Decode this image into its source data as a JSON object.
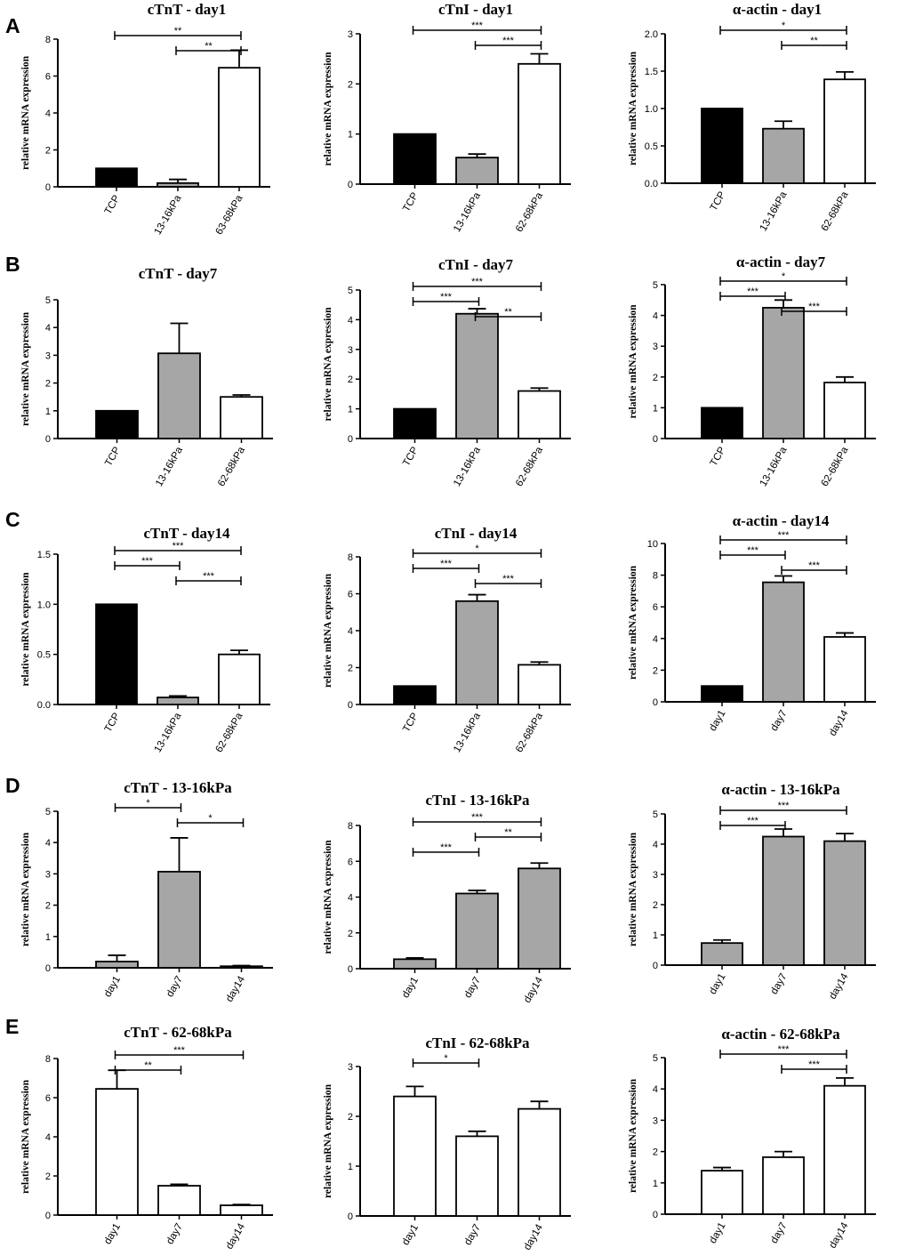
{
  "panel_labels": [
    "A",
    "B",
    "C",
    "D",
    "E"
  ],
  "colors": {
    "black": "#000000",
    "gray": "#a6a6a6",
    "white": "#ffffff",
    "axis": "#000000"
  },
  "chart_data": [
    {
      "type": "bar",
      "title": "cTnT - day1",
      "ylabel": "relative mRNA expression",
      "categories": [
        "TCP",
        "13-16kPa",
        "63-68kPa"
      ],
      "values": [
        1,
        0.2,
        6.45
      ],
      "errors": [
        0,
        0.2,
        0.95
      ],
      "fills": [
        "black",
        "gray",
        "white"
      ],
      "ylim": [
        0,
        8
      ],
      "yticks": [
        "0",
        "2",
        "4",
        "6",
        "8"
      ],
      "sig": [
        {
          "from": 0,
          "to": 2,
          "label": "**"
        },
        {
          "from": 1,
          "to": 2,
          "label": "**"
        }
      ]
    },
    {
      "type": "bar",
      "title": "cTnI - day1",
      "ylabel": "relative mRNA expression",
      "categories": [
        "TCP",
        "13-16kPa",
        "62-68kPa"
      ],
      "values": [
        1,
        0.53,
        2.4
      ],
      "errors": [
        0,
        0.07,
        0.2
      ],
      "fills": [
        "black",
        "gray",
        "white"
      ],
      "ylim": [
        0,
        3
      ],
      "yticks": [
        "0",
        "1",
        "2",
        "3"
      ],
      "sig": [
        {
          "from": 0,
          "to": 2,
          "label": "***"
        },
        {
          "from": 1,
          "to": 2,
          "label": "***"
        }
      ]
    },
    {
      "type": "bar",
      "title": "α-actin - day1",
      "ylabel": "relative mRNA expression",
      "categories": [
        "TCP",
        "13-16kPa",
        "62-68kPa"
      ],
      "values": [
        1,
        0.73,
        1.39
      ],
      "errors": [
        0,
        0.1,
        0.1
      ],
      "fills": [
        "black",
        "gray",
        "white"
      ],
      "ylim": [
        0,
        2
      ],
      "yticks": [
        "0.0",
        "0.5",
        "1.0",
        "1.5",
        "2.0"
      ],
      "sig": [
        {
          "from": 0,
          "to": 2,
          "label": "*"
        },
        {
          "from": 1,
          "to": 2,
          "label": "**"
        }
      ]
    },
    {
      "type": "bar",
      "title": "cTnT - day7",
      "ylabel": "relative mRNA expression",
      "categories": [
        "TCP",
        "13-16kPa",
        "62-68kPa"
      ],
      "values": [
        1,
        3.07,
        1.5
      ],
      "errors": [
        0,
        1.08,
        0.07
      ],
      "fills": [
        "black",
        "gray",
        "white"
      ],
      "ylim": [
        0,
        5
      ],
      "yticks": [
        "0",
        "1",
        "2",
        "3",
        "4",
        "5"
      ],
      "sig": []
    },
    {
      "type": "bar",
      "title": "cTnI - day7",
      "ylabel": "relative mRNA expression",
      "categories": [
        "TCP",
        "13-16kPa",
        "62-68kPa"
      ],
      "values": [
        1,
        4.2,
        1.6
      ],
      "errors": [
        0,
        0.17,
        0.1
      ],
      "fills": [
        "black",
        "gray",
        "white"
      ],
      "ylim": [
        0,
        5
      ],
      "yticks": [
        "0",
        "1",
        "2",
        "3",
        "4",
        "5"
      ],
      "sig": [
        {
          "from": 0,
          "to": 2,
          "label": "***"
        },
        {
          "from": 0,
          "to": 1,
          "label": "***"
        },
        {
          "from": 1,
          "to": 2,
          "label": "**"
        }
      ]
    },
    {
      "type": "bar",
      "title": "α-actin - day7",
      "ylabel": "relative mRNA expression",
      "categories": [
        "TCP",
        "13-16kPa",
        "62-68kPa"
      ],
      "values": [
        1,
        4.25,
        1.82
      ],
      "errors": [
        0,
        0.25,
        0.18
      ],
      "fills": [
        "black",
        "gray",
        "white"
      ],
      "ylim": [
        0,
        5
      ],
      "yticks": [
        "0",
        "1",
        "2",
        "3",
        "4",
        "5"
      ],
      "sig": [
        {
          "from": 0,
          "to": 2,
          "label": "*"
        },
        {
          "from": 0,
          "to": 1,
          "label": "***"
        },
        {
          "from": 1,
          "to": 2,
          "label": "***"
        }
      ]
    },
    {
      "type": "bar",
      "title": "cTnT - day14",
      "ylabel": "relative mRNA expression",
      "categories": [
        "TCP",
        "13-16kPa",
        "62-68kPa"
      ],
      "values": [
        1,
        0.07,
        0.5
      ],
      "errors": [
        0,
        0.015,
        0.04
      ],
      "fills": [
        "black",
        "gray",
        "white"
      ],
      "ylim": [
        0,
        1.5
      ],
      "yticks": [
        "0.0",
        "0.5",
        "1.0",
        "1.5"
      ],
      "sig": [
        {
          "from": 0,
          "to": 2,
          "label": "***"
        },
        {
          "from": 0,
          "to": 1,
          "label": "***"
        },
        {
          "from": 1,
          "to": 2,
          "label": "***"
        }
      ]
    },
    {
      "type": "bar",
      "title": "cTnI - day14",
      "ylabel": "relative mRNA expression",
      "categories": [
        "TCP",
        "13-16kPa",
        "62-68kPa"
      ],
      "values": [
        1,
        5.6,
        2.15
      ],
      "errors": [
        0,
        0.35,
        0.15
      ],
      "fills": [
        "black",
        "gray",
        "white"
      ],
      "ylim": [
        0,
        8
      ],
      "yticks": [
        "0",
        "2",
        "4",
        "6",
        "8"
      ],
      "sig": [
        {
          "from": 0,
          "to": 2,
          "label": "*"
        },
        {
          "from": 0,
          "to": 1,
          "label": "***"
        },
        {
          "from": 1,
          "to": 2,
          "label": "***"
        }
      ]
    },
    {
      "type": "bar",
      "title": "α-actin - day14",
      "ylabel": "relative mRNA expression",
      "categories": [
        "day1",
        "day7",
        "day14"
      ],
      "values": [
        1,
        7.55,
        4.1
      ],
      "errors": [
        0,
        0.4,
        0.25
      ],
      "fills": [
        "black",
        "gray",
        "white"
      ],
      "ylim": [
        0,
        10
      ],
      "yticks": [
        "0",
        "2",
        "4",
        "6",
        "8",
        "10"
      ],
      "sig": [
        {
          "from": 0,
          "to": 2,
          "label": "***"
        },
        {
          "from": 0,
          "to": 1,
          "label": "***"
        },
        {
          "from": 1,
          "to": 2,
          "label": "***"
        }
      ]
    },
    {
      "type": "bar",
      "title": "cTnT - 13-16kPa",
      "ylabel": "relative mRNA expression",
      "categories": [
        "day1",
        "day7",
        "day14"
      ],
      "values": [
        0.2,
        3.07,
        0.05
      ],
      "errors": [
        0.2,
        1.08,
        0.02
      ],
      "fills": [
        "gray",
        "gray",
        "gray"
      ],
      "ylim": [
        0,
        5
      ],
      "yticks": [
        "0",
        "1",
        "2",
        "3",
        "4",
        "5"
      ],
      "sig": [
        {
          "from": 0,
          "to": 1,
          "label": "*"
        },
        {
          "from": 1,
          "to": 2,
          "label": "*"
        }
      ]
    },
    {
      "type": "bar",
      "title": "cTnI - 13-16kPa",
      "ylabel": "relative mRNA expression",
      "categories": [
        "day1",
        "day7",
        "day14"
      ],
      "values": [
        0.53,
        4.2,
        5.6
      ],
      "errors": [
        0.07,
        0.17,
        0.3
      ],
      "fills": [
        "gray",
        "gray",
        "gray"
      ],
      "ylim": [
        0,
        8
      ],
      "yticks": [
        "0",
        "2",
        "4",
        "6",
        "8"
      ],
      "sig": [
        {
          "from": 0,
          "to": 2,
          "label": "***"
        },
        {
          "from": 1,
          "to": 2,
          "label": "**"
        },
        {
          "from": 0,
          "to": 1,
          "label": "***"
        }
      ]
    },
    {
      "type": "bar",
      "title": "α-actin - 13-16kPa",
      "ylabel": "relative mRNA expression",
      "categories": [
        "day1",
        "day7",
        "day14"
      ],
      "values": [
        0.73,
        4.25,
        4.1
      ],
      "errors": [
        0.1,
        0.25,
        0.25
      ],
      "fills": [
        "gray",
        "gray",
        "gray"
      ],
      "ylim": [
        0,
        5
      ],
      "yticks": [
        "0",
        "1",
        "2",
        "3",
        "4",
        "5"
      ],
      "sig": [
        {
          "from": 0,
          "to": 2,
          "label": "***"
        },
        {
          "from": 0,
          "to": 1,
          "label": "***"
        }
      ]
    },
    {
      "type": "bar",
      "title": "cTnT - 62-68kPa",
      "ylabel": "relative mRNA expression",
      "categories": [
        "day1",
        "day7",
        "day14"
      ],
      "values": [
        6.45,
        1.5,
        0.5
      ],
      "errors": [
        0.95,
        0.07,
        0.04
      ],
      "fills": [
        "white",
        "white",
        "white"
      ],
      "ylim": [
        0,
        8
      ],
      "yticks": [
        "0",
        "2",
        "4",
        "6",
        "8"
      ],
      "sig": [
        {
          "from": 0,
          "to": 2,
          "label": "***"
        },
        {
          "from": 0,
          "to": 1,
          "label": "**"
        }
      ]
    },
    {
      "type": "bar",
      "title": "cTnI - 62-68kPa",
      "ylabel": "relative mRNA expression",
      "categories": [
        "day1",
        "day7",
        "day14"
      ],
      "values": [
        2.4,
        1.6,
        2.15
      ],
      "errors": [
        0.2,
        0.1,
        0.15
      ],
      "fills": [
        "white",
        "white",
        "white"
      ],
      "ylim": [
        0,
        3
      ],
      "yticks": [
        "0",
        "1",
        "2",
        "3"
      ],
      "sig": [
        {
          "from": 0,
          "to": 1,
          "label": "*"
        }
      ]
    },
    {
      "type": "bar",
      "title": "α-actin - 62-68kPa",
      "ylabel": "relative mRNA expression",
      "categories": [
        "day1",
        "day7",
        "day14"
      ],
      "values": [
        1.39,
        1.82,
        4.1
      ],
      "errors": [
        0.1,
        0.18,
        0.25
      ],
      "fills": [
        "white",
        "white",
        "white"
      ],
      "ylim": [
        0,
        5
      ],
      "yticks": [
        "0",
        "1",
        "2",
        "3",
        "4",
        "5"
      ],
      "sig": [
        {
          "from": 0,
          "to": 2,
          "label": "***"
        },
        {
          "from": 1,
          "to": 2,
          "label": "***"
        }
      ]
    }
  ]
}
